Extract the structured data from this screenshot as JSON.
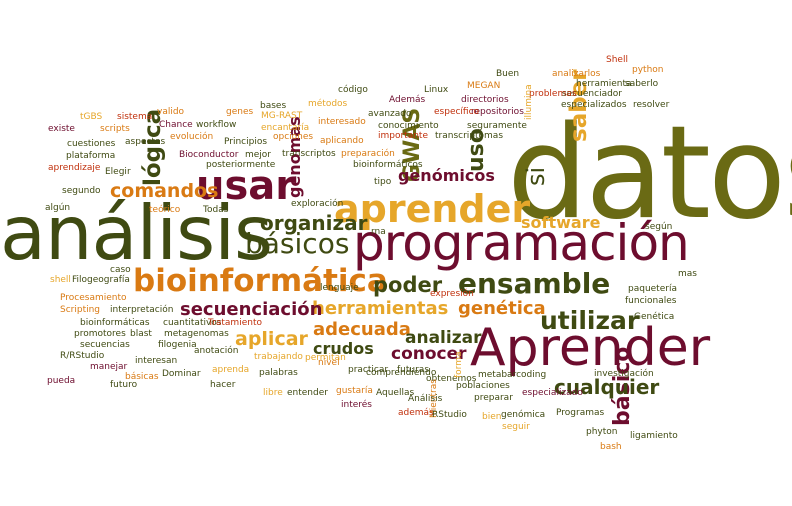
{
  "palette": {
    "background": "#ffffff",
    "olive": "#6a6a14",
    "dark_olive": "#3f4a12",
    "maroon": "#6d0d2e",
    "orange": "#d97a13",
    "yellow": "#e6a62a",
    "red": "#c0300c"
  },
  "words": [
    "datos",
    "análisis",
    "programación",
    "Aprender",
    "usar",
    "aprender",
    "bioinformática",
    "ensamble",
    "utilizar",
    "básicos",
    "saber",
    "GWAS",
    "uso",
    "si",
    "genómicos",
    "genomas",
    "lógica",
    "comandos",
    "organizar",
    "software",
    "herramientas",
    "secuenciación",
    "adecuada",
    "poder",
    "analizar",
    "genética",
    "conocer",
    "aplicar",
    "crudos",
    "cualquier",
    "básico",
    "Shell",
    "python",
    "saberlo",
    "resolver",
    "Buen",
    "analizarlos",
    "herramienta",
    "secuenciador",
    "especializados",
    "problemas",
    "illumina",
    "MEGAN",
    "Linux",
    "código",
    "directorios",
    "repositorios",
    "específico",
    "Además",
    "transcriptomas",
    "conocimiento",
    "seguramente",
    "métodos",
    "bases",
    "avanzado",
    "importante",
    "interesado",
    "aplicando",
    "transcriptos",
    "preparación",
    "bioinformáticos",
    "tipo",
    "exploración",
    "rna",
    "según",
    "mas",
    "paquetería",
    "funcionales",
    "Genética",
    "investigación",
    "metabarcoding",
    "especializado",
    "poblaciones",
    "obtenemos",
    "comprendiendo",
    "expresión",
    "lenguaje",
    "futuras",
    "forma",
    "Mientras",
    "además",
    "Análisis",
    "RStudio",
    "bien",
    "seguir",
    "genómica",
    "Programas",
    "phyton",
    "bash",
    "ligamiento",
    "nivel",
    "gustaría",
    "interés",
    "Aquellas",
    "preparar",
    "practicar",
    "permitan",
    "palabras",
    "entender",
    "libre",
    "trabajando",
    "hacer",
    "aprenda",
    "anotación",
    "Dominar",
    "básicas",
    "futuro",
    "interesan",
    "manejar",
    "pueda",
    "R/RStudio",
    "secuencias",
    "filogenia",
    "promotores",
    "blast",
    "metagenomas",
    "bioinformáticas",
    "cuantitativos",
    "Tratamiento",
    "Scripting",
    "interpretación",
    "Procesamiento",
    "caso",
    "Filogeografía",
    "shell",
    "algún",
    "teórico",
    "Todas",
    "segundo",
    "Elegir",
    "aprendizaje",
    "plataforma",
    "cuestiones",
    "existe",
    "tGBS",
    "sistema",
    "scripts",
    "valido",
    "Chance",
    "workflow",
    "aspectos",
    "evolución",
    "Principios",
    "Bioconductor",
    "posteriormente",
    "mejor",
    "genes",
    "MG-RAST",
    "opciones",
    "encantaría"
  ]
}
